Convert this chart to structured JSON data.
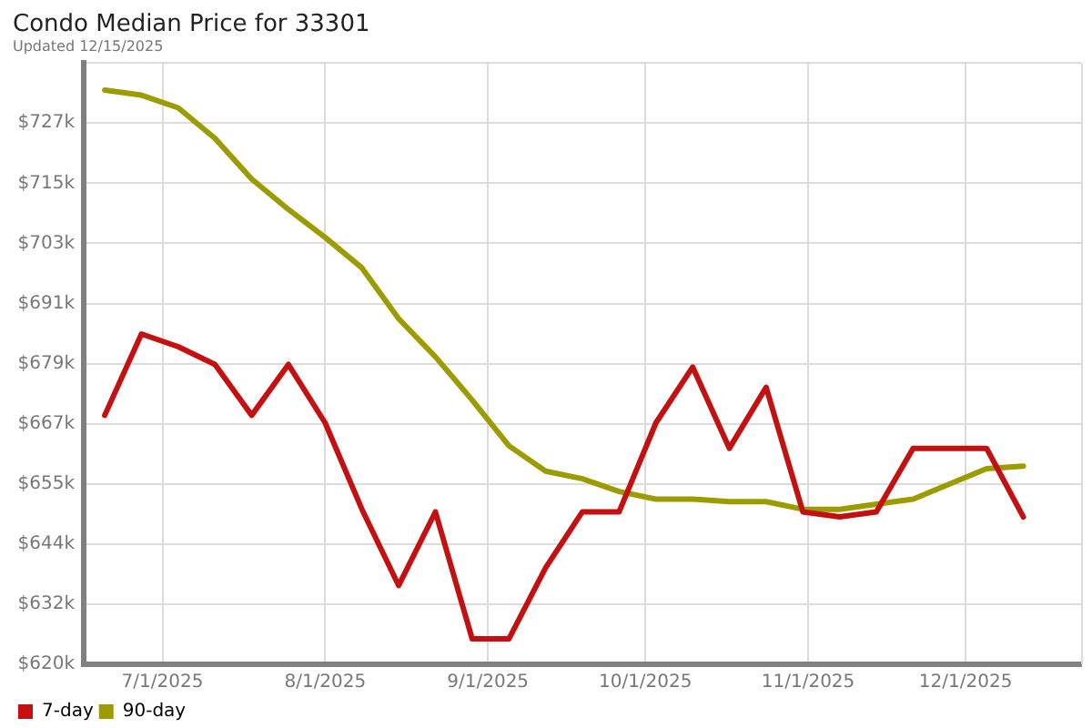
{
  "chart_data": {
    "type": "line",
    "title": "Condo Median Price for 33301",
    "subtitle": "Updated 12/15/2025",
    "x": [
      "2025-06-20",
      "2025-06-27",
      "2025-07-04",
      "2025-07-11",
      "2025-07-18",
      "2025-07-25",
      "2025-08-01",
      "2025-08-08",
      "2025-08-15",
      "2025-08-22",
      "2025-08-29",
      "2025-09-05",
      "2025-09-12",
      "2025-09-19",
      "2025-09-26",
      "2025-10-03",
      "2025-10-10",
      "2025-10-17",
      "2025-10-24",
      "2025-10-31",
      "2025-11-07",
      "2025-11-14",
      "2025-11-21",
      "2025-11-28",
      "2025-12-05",
      "2025-12-12"
    ],
    "series": [
      {
        "name": "7-day",
        "color": "#c41010",
        "values": [
          669000,
          685000,
          682500,
          679000,
          669000,
          679000,
          667500,
          650500,
          635500,
          650000,
          625000,
          625000,
          639000,
          650000,
          650000,
          667500,
          678500,
          662500,
          674500,
          650000,
          649000,
          650000,
          662500,
          662500,
          662500,
          649000
        ]
      },
      {
        "name": "90-day",
        "color": "#9c9c00",
        "values": [
          733000,
          732000,
          729500,
          723500,
          715500,
          709500,
          704000,
          698000,
          688000,
          680500,
          672000,
          663000,
          658000,
          656500,
          654000,
          652500,
          652500,
          652000,
          652000,
          650500,
          650500,
          651500,
          652500,
          655500,
          658500,
          659000
        ]
      }
    ],
    "xlim": [
      "2025-06-16",
      "2025-12-23"
    ],
    "xticks": [
      {
        "value": "2025-07-01",
        "label": "7/1/2025"
      },
      {
        "value": "2025-08-01",
        "label": "8/1/2025"
      },
      {
        "value": "2025-09-01",
        "label": "9/1/2025"
      },
      {
        "value": "2025-10-01",
        "label": "10/1/2025"
      },
      {
        "value": "2025-11-01",
        "label": "11/1/2025"
      },
      {
        "value": "2025-12-01",
        "label": "12/1/2025"
      }
    ],
    "ylim": [
      620000,
      738333
    ],
    "yticks": [
      {
        "value": 620000,
        "label": "$620k"
      },
      {
        "value": 631833,
        "label": "$632k"
      },
      {
        "value": 643667,
        "label": "$644k"
      },
      {
        "value": 655450,
        "label": "$655k"
      },
      {
        "value": 667333,
        "label": "$667k"
      },
      {
        "value": 679167,
        "label": "$679k"
      },
      {
        "value": 691000,
        "label": "$691k"
      },
      {
        "value": 702833,
        "label": "$703k"
      },
      {
        "value": 714667,
        "label": "$715k"
      },
      {
        "value": 726550,
        "label": "$727k"
      },
      {
        "value": 738333,
        "label": null
      }
    ],
    "grid": true,
    "legend": "bottom left",
    "marker": "none"
  }
}
